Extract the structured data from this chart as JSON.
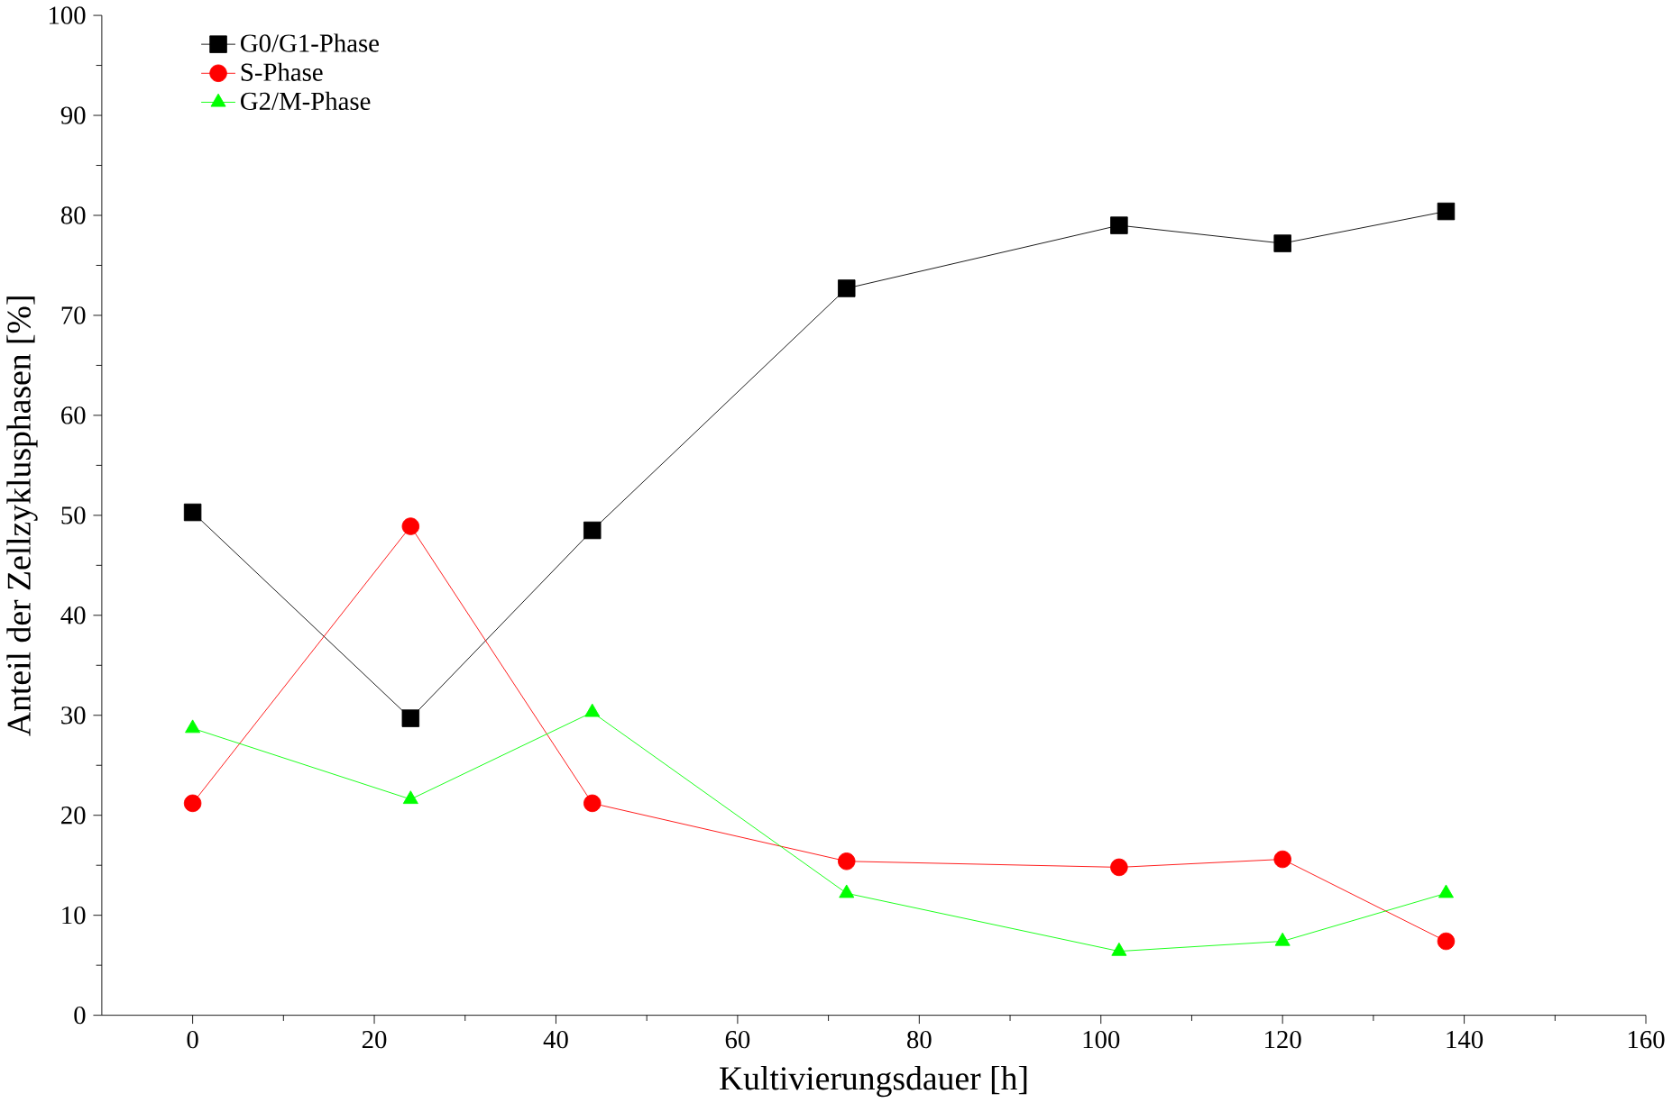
{
  "chart_data": {
    "type": "line",
    "xlabel": "Kultivierungsdauer [h]",
    "ylabel": "Anteil der Zellzyklusphasen [%]",
    "x": [
      0,
      24,
      44,
      72,
      102,
      120,
      138
    ],
    "series": [
      {
        "name": "G0/G1-Phase",
        "color": "#000000",
        "marker": "square",
        "values": [
          50.3,
          29.7,
          48.5,
          72.7,
          79,
          77.2,
          80.4
        ]
      },
      {
        "name": "S-Phase",
        "color": "#ff0000",
        "marker": "circle",
        "values": [
          21.2,
          48.9,
          21.2,
          15.4,
          14.8,
          15.6,
          7.4
        ]
      },
      {
        "name": "G2/M-Phase",
        "color": "#00ff00",
        "marker": "triangle",
        "values": [
          28.7,
          21.6,
          30.3,
          12.2,
          6.4,
          7.4,
          12.2
        ]
      }
    ],
    "xlim": [
      -10,
      160
    ],
    "ylim": [
      0,
      100
    ],
    "xticks": [
      0,
      20,
      40,
      60,
      80,
      100,
      120,
      140,
      160
    ],
    "yticks": [
      0,
      10,
      20,
      30,
      40,
      50,
      60,
      70,
      80,
      90,
      100
    ],
    "grid": false,
    "legend": "top left",
    "line_style": "solid"
  }
}
